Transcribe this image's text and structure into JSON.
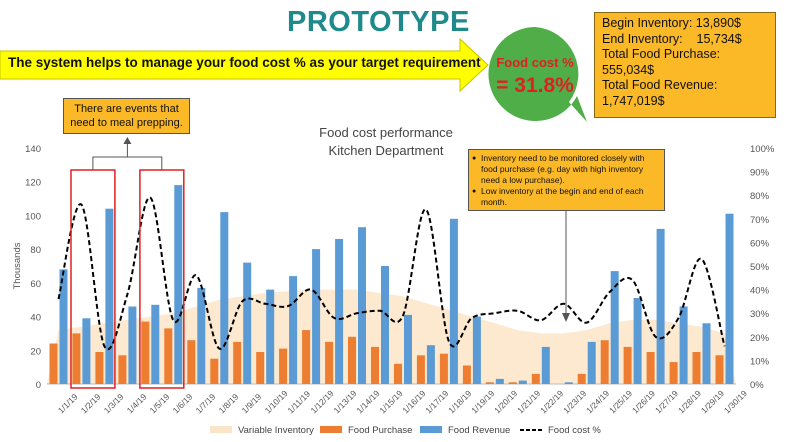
{
  "header": {
    "title": "PROTOTYPE",
    "banner_text": "The system helps to manage your food cost % as your target requirement",
    "bubble_label": "Food cost %",
    "bubble_value": "= 31.8%"
  },
  "summary_box": {
    "lines": [
      "Begin Inventory: 13,890$",
      "End Inventory:    15,734$",
      "Total Food Purchase:",
      "555,034$",
      "Total Food Revenue:",
      "1,747,019$"
    ]
  },
  "notes": {
    "events_note": "There are events that need to meal prepping.",
    "inventory_bullets": [
      "Inventory need to be monitored closely with food purchase (e.g. day with high inventory need a low purchase).",
      "Low inventory at the begin and end of each month."
    ]
  },
  "colors": {
    "title": "#1f8a8c",
    "banner": "#ffff00",
    "bubble": "#4fae48",
    "note_bg": "#fbb827",
    "purchase": "#ed7d31",
    "revenue": "#5b9bd5",
    "inventory": "#fbe5c8",
    "food_cost_line": "#000000",
    "highlight": "#e02020"
  },
  "chart_data": {
    "type": "bar",
    "title": "Food cost performance",
    "subtitle": "Kitchen Department",
    "ylabel": "Thousands",
    "ylim": [
      0,
      140
    ],
    "y2lim": [
      0,
      1
    ],
    "yticks": [
      "0",
      "20",
      "40",
      "60",
      "80",
      "100",
      "120",
      "140"
    ],
    "y2ticks": [
      "0%",
      "10%",
      "20%",
      "30%",
      "40%",
      "50%",
      "60%",
      "70%",
      "80%",
      "90%",
      "100%"
    ],
    "categories": [
      "1/1/19",
      "1/2/19",
      "1/3/19",
      "1/4/19",
      "1/5/19",
      "1/6/19",
      "1/7/19",
      "1/8/19",
      "1/9/19",
      "1/10/19",
      "1/11/19",
      "1/12/19",
      "1/13/19",
      "1/14/19",
      "1/15/19",
      "1/16/19",
      "1/17/19",
      "1/18/19",
      "1/19/19",
      "1/20/19",
      "1/21/19",
      "1/22/19",
      "1/23/19",
      "1/24/19",
      "1/25/19",
      "1/26/19",
      "1/27/19",
      "1/28/19",
      "1/29/19",
      "1/30/19"
    ],
    "series": [
      {
        "name": "Food Purchase",
        "values": [
          24,
          30,
          19,
          17,
          37,
          33,
          26,
          15,
          25,
          19,
          21,
          32,
          25,
          28,
          22,
          12,
          17,
          18,
          11,
          1,
          1,
          6,
          0,
          6,
          26,
          22,
          19,
          13,
          19,
          17
        ]
      },
      {
        "name": "Food Revenue",
        "values": [
          68,
          39,
          104,
          46,
          47,
          118,
          57,
          102,
          72,
          56,
          64,
          80,
          86,
          93,
          70,
          41,
          23,
          98,
          40,
          3,
          2,
          22,
          1,
          25,
          67,
          51,
          92,
          46,
          36,
          101
        ]
      },
      {
        "name": "Variable Inventory",
        "values": [
          32,
          34,
          36,
          38,
          40,
          42,
          46,
          50,
          52,
          54,
          55,
          56,
          56,
          56,
          54,
          52,
          48,
          44,
          40,
          36,
          32,
          30,
          30,
          32,
          36,
          38,
          38,
          36,
          34,
          30
        ]
      },
      {
        "name": "Food cost %",
        "values": [
          0.36,
          0.76,
          0.16,
          0.38,
          0.79,
          0.27,
          0.46,
          0.15,
          0.35,
          0.34,
          0.33,
          0.4,
          0.28,
          0.3,
          0.31,
          0.29,
          0.74,
          0.18,
          0.28,
          0.3,
          0.31,
          0.27,
          0.34,
          0.26,
          0.39,
          0.44,
          0.2,
          0.28,
          0.53,
          0.16
        ]
      }
    ],
    "highlighted_ranges": [
      [
        "1/2/19",
        "1/3/19"
      ],
      [
        "1/5/19",
        "1/6/19"
      ]
    ],
    "grid": false,
    "legend": "bottom"
  }
}
